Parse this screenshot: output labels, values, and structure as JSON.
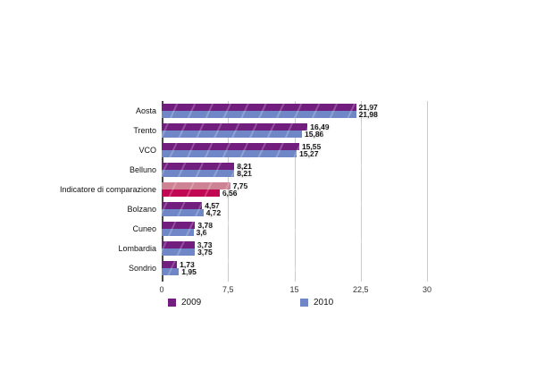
{
  "chart_data": {
    "type": "bar",
    "orientation": "horizontal",
    "title": "",
    "categories": [
      "Aosta",
      "Trento",
      "VCO",
      "Belluno",
      "Indicatore di comparazione",
      "Bolzano",
      "Cuneo",
      "Lombardia",
      "Sondrio"
    ],
    "series": [
      {
        "name": "2009",
        "color": "#711E7E",
        "values": [
          21.97,
          16.49,
          15.55,
          8.21,
          7.75,
          4.57,
          3.78,
          3.73,
          1.73
        ],
        "labels": [
          "21,97",
          "16,49",
          "15,55",
          "8,21",
          "7,75",
          "4,57",
          "3,78",
          "3,73",
          "1,73"
        ]
      },
      {
        "name": "2010",
        "color": "#6F87C6",
        "values": [
          21.98,
          15.86,
          15.27,
          8.21,
          6.56,
          4.72,
          3.6,
          3.75,
          1.95
        ],
        "labels": [
          "21,98",
          "15,86",
          "15,27",
          "8,21",
          "6,56",
          "4,72",
          "3,6",
          "3,75",
          "1,95"
        ]
      }
    ],
    "highlight": {
      "category": "Indicatore di comparazione",
      "colors": [
        "#CD8394",
        "#C20853"
      ]
    },
    "xlim": [
      0,
      30
    ],
    "xticks": [
      0,
      7.5,
      15,
      22.5,
      30
    ],
    "xtick_labels": [
      "0",
      "7,5",
      "15",
      "22,5",
      "30"
    ],
    "grid": "vertical",
    "legend_position": "bottom",
    "styles": {
      "gridline_color": "#cbcbcb",
      "axis_line_color": "#4a4a4a",
      "text_color": "#111111",
      "background": "#ffffff"
    }
  }
}
